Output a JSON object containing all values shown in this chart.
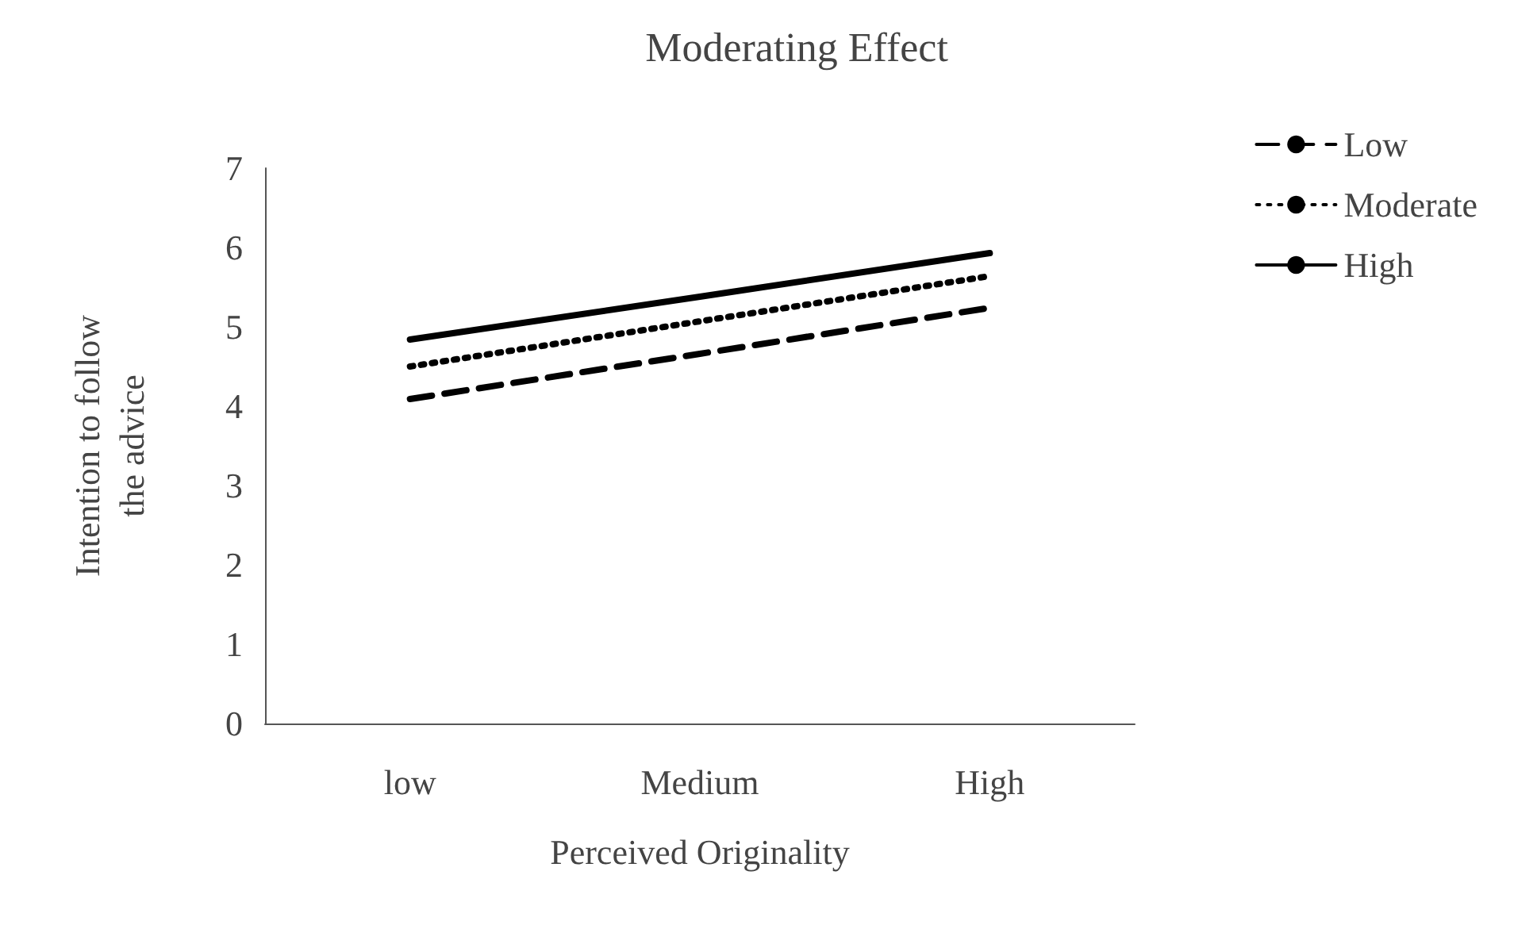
{
  "chart_data": {
    "type": "line",
    "title": "Moderating Effect",
    "xlabel": "Perceived Originality",
    "ylabel": "Intention to follow\nthe advice",
    "categories": [
      "low",
      "Medium",
      "High"
    ],
    "series": [
      {
        "name": "Low",
        "color": "#000000",
        "line_style": "dashed",
        "values": [
          4.09,
          4.66,
          5.24
        ]
      },
      {
        "name": "Moderate",
        "color": "#000000",
        "line_style": "dotted",
        "values": [
          4.5,
          5.07,
          5.64
        ]
      },
      {
        "name": "High",
        "color": "#000000",
        "line_style": "solid",
        "values": [
          4.84,
          5.38,
          5.93
        ]
      }
    ],
    "ylim": [
      0,
      7
    ],
    "yticks": [
      0,
      1,
      2,
      3,
      4,
      5,
      6,
      7
    ],
    "grid": false,
    "legend": "right",
    "marker": "none"
  }
}
